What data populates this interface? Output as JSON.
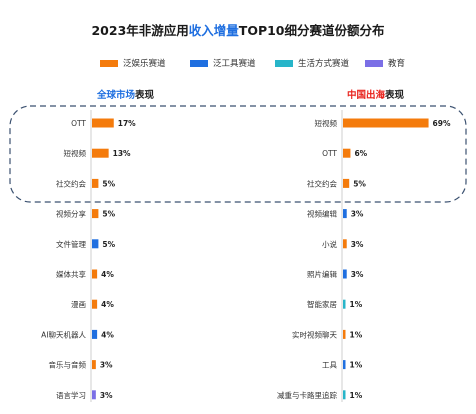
{
  "title": {
    "prefix": "2023年非游应用",
    "highlight": "收入增量",
    "suffix": "TOP10细分赛道份额分布"
  },
  "legend": [
    {
      "label": "泛娱乐赛道",
      "color": "#f47b0c"
    },
    {
      "label": "泛工具赛道",
      "color": "#1f6fe0"
    },
    {
      "label": "生活方式赛道",
      "color": "#27b5c9"
    },
    {
      "label": "教育",
      "color": "#7b6fe6"
    }
  ],
  "chart_data": [
    {
      "type": "bar",
      "orientation": "horizontal",
      "title_highlight": "全球市场",
      "title_rest": "表现",
      "categories": [
        "OTT",
        "短视频",
        "社交约会",
        "视频分享",
        "文件管理",
        "媒体共享",
        "漫画",
        "AI聊天机器人",
        "音乐与音频",
        "语言学习"
      ],
      "values": [
        17,
        13,
        5,
        5,
        5,
        4,
        4,
        4,
        3,
        3
      ],
      "value_labels": [
        "17%",
        "13%",
        "5%",
        "5%",
        "5%",
        "4%",
        "4%",
        "4%",
        "3%",
        "3%"
      ],
      "segments": [
        "泛娱乐赛道",
        "泛娱乐赛道",
        "泛娱乐赛道",
        "泛娱乐赛道",
        "泛工具赛道",
        "泛娱乐赛道",
        "泛娱乐赛道",
        "泛工具赛道",
        "泛娱乐赛道",
        "教育"
      ],
      "unit": "%"
    },
    {
      "type": "bar",
      "orientation": "horizontal",
      "title_highlight": "中国出海",
      "title_rest": "表现",
      "categories": [
        "短视频",
        "OTT",
        "社交约会",
        "视频编辑",
        "小说",
        "照片编辑",
        "智能家居",
        "实时视频聊天",
        "工具",
        "减重与卡路里追踪"
      ],
      "values": [
        69,
        6,
        5,
        3,
        3,
        3,
        1,
        1,
        1,
        1
      ],
      "value_labels": [
        "69%",
        "6%",
        "5%",
        "3%",
        "3%",
        "3%",
        "1%",
        "1%",
        "1%",
        "1%"
      ],
      "segments": [
        "泛娱乐赛道",
        "泛娱乐赛道",
        "泛娱乐赛道",
        "泛工具赛道",
        "泛娱乐赛道",
        "泛工具赛道",
        "生活方式赛道",
        "泛娱乐赛道",
        "泛工具赛道",
        "生活方式赛道"
      ],
      "unit": "%"
    }
  ]
}
